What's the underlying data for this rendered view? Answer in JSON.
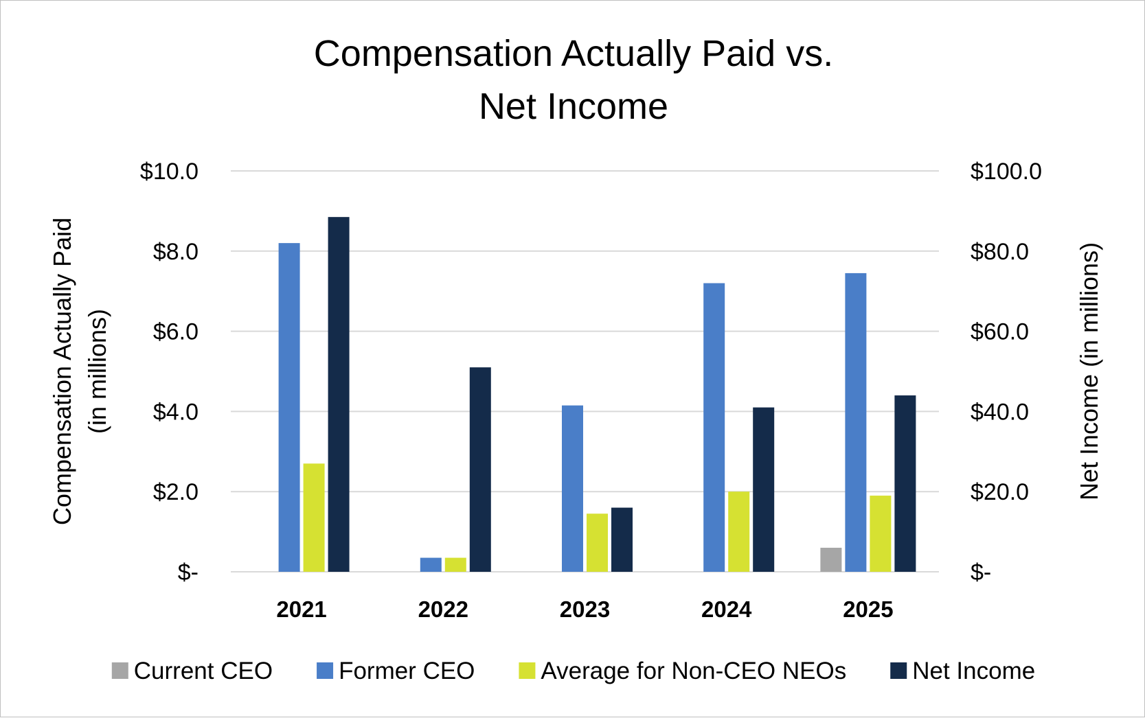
{
  "chart_data": {
    "type": "bar",
    "title": "Compensation Actually Paid vs.\nNet Income",
    "title_lines": [
      "Compensation Actually Paid vs.",
      "Net Income"
    ],
    "categories": [
      "2021",
      "2022",
      "2023",
      "2024",
      "2025"
    ],
    "y_left": {
      "label_lines": [
        "Compensation Actually Paid",
        "(in millions)"
      ],
      "ylim": [
        0,
        10
      ],
      "tick_labels": [
        "$-",
        "$2.0",
        "$4.0",
        "$6.0",
        "$8.0",
        "$10.0"
      ]
    },
    "y_right": {
      "label": "Net Income (in millions)",
      "ylim": [
        0,
        100
      ],
      "tick_labels": [
        "$-",
        "$20.0",
        "$40.0",
        "$60.0",
        "$80.0",
        "$100.0"
      ]
    },
    "series": [
      {
        "name": "Current CEO",
        "axis": "left",
        "color": "#a6a6a6",
        "values": [
          null,
          null,
          null,
          null,
          0.6
        ]
      },
      {
        "name": "Former CEO",
        "axis": "left",
        "color": "#4a7ec8",
        "values": [
          8.2,
          0.35,
          4.15,
          7.2,
          7.45
        ]
      },
      {
        "name": "Average for Non-CEO NEOs",
        "axis": "left",
        "color": "#d6e132",
        "values": [
          2.7,
          0.35,
          1.45,
          2.0,
          1.9
        ]
      },
      {
        "name": "Net Income",
        "axis": "right",
        "color": "#142b4a",
        "values": [
          88.5,
          51.0,
          16.0,
          41.0,
          44.0
        ]
      }
    ],
    "grid": true,
    "legend_position": "bottom"
  }
}
